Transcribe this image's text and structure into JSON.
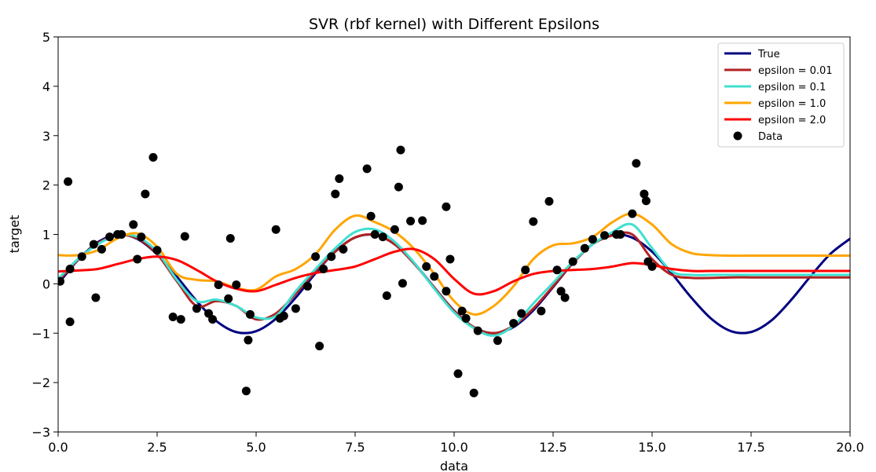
{
  "chart_data": {
    "type": "line",
    "title": "SVR (rbf kernel) with Different Epsilons",
    "xlabel": "data",
    "ylabel": "target",
    "xlim": [
      0,
      20
    ],
    "ylim": [
      -3,
      5
    ],
    "xticks": [
      0.0,
      2.5,
      5.0,
      7.5,
      10.0,
      12.5,
      15.0,
      17.5,
      20.0
    ],
    "xtick_labels": [
      "0.0",
      "2.5",
      "5.0",
      "7.5",
      "10.0",
      "12.5",
      "15.0",
      "17.5",
      "20.0"
    ],
    "yticks": [
      -3,
      -2,
      -1,
      0,
      1,
      2,
      3,
      4,
      5
    ],
    "ytick_labels": [
      "−3",
      "−2",
      "−1",
      "0",
      "1",
      "2",
      "3",
      "4",
      "5"
    ],
    "grid": false,
    "legend_position": "top-right",
    "legend": [
      "True",
      "epsilon = 0.01",
      "epsilon = 0.1",
      "epsilon = 1.0",
      "epsilon = 2.0",
      "Data"
    ],
    "series": [
      {
        "name": "True",
        "color": "#000080",
        "x": [
          0,
          0.5,
          1,
          1.5,
          2,
          2.5,
          3,
          3.5,
          4,
          4.5,
          5,
          5.5,
          6,
          6.5,
          7,
          7.5,
          8,
          8.5,
          9,
          9.5,
          10,
          10.5,
          11,
          11.5,
          12,
          12.5,
          13,
          13.5,
          14,
          14.5,
          15,
          15.5,
          16,
          16.5,
          17,
          17.5,
          18,
          18.5,
          19,
          19.5,
          20
        ],
        "y": [
          0.0,
          0.479,
          0.841,
          0.997,
          0.909,
          0.598,
          0.141,
          -0.351,
          -0.757,
          -0.978,
          -0.959,
          -0.706,
          -0.279,
          0.215,
          0.657,
          0.938,
          0.989,
          0.798,
          0.412,
          -0.075,
          -0.544,
          -0.88,
          -1.0,
          -0.875,
          -0.537,
          -0.066,
          0.42,
          0.804,
          0.991,
          0.935,
          0.65,
          0.206,
          -0.288,
          -0.712,
          -0.961,
          -0.976,
          -0.751,
          -0.338,
          0.15,
          0.604,
          0.913
        ]
      },
      {
        "name": "epsilon = 0.01",
        "color": "#b22222",
        "x": [
          0,
          0.5,
          1,
          1.5,
          2,
          2.5,
          3,
          3.5,
          4,
          4.5,
          5,
          5.5,
          6,
          6.5,
          7,
          7.5,
          8,
          8.5,
          9,
          9.5,
          10,
          10.5,
          11,
          11.5,
          12,
          12.5,
          13,
          13.5,
          14,
          14.5,
          15,
          15.5,
          16,
          16.5,
          17,
          17.5,
          18,
          18.5,
          19,
          19.5,
          20
        ],
        "y": [
          0.05,
          0.48,
          0.82,
          0.98,
          0.92,
          0.6,
          0.05,
          -0.45,
          -0.35,
          -0.45,
          -0.72,
          -0.6,
          -0.2,
          0.25,
          0.65,
          0.94,
          0.99,
          0.8,
          0.4,
          -0.08,
          -0.55,
          -0.88,
          -1.0,
          -0.85,
          -0.5,
          -0.05,
          0.42,
          0.8,
          0.98,
          1.0,
          0.5,
          0.18,
          0.12,
          0.12,
          0.13,
          0.13,
          0.13,
          0.13,
          0.13,
          0.13,
          0.13
        ]
      },
      {
        "name": "epsilon = 0.1",
        "color": "#40e0d0",
        "x": [
          0,
          0.5,
          1,
          1.5,
          2,
          2.5,
          3,
          3.5,
          4,
          4.5,
          5,
          5.5,
          6,
          6.5,
          7,
          7.5,
          8,
          8.5,
          9,
          9.5,
          10,
          10.5,
          11,
          11.5,
          12,
          12.5,
          13,
          13.5,
          14,
          14.5,
          15,
          15.5,
          16,
          16.5,
          17,
          17.5,
          18,
          18.5,
          19,
          19.5,
          20
        ],
        "y": [
          0.1,
          0.5,
          0.8,
          0.98,
          0.95,
          0.65,
          0.08,
          -0.35,
          -0.32,
          -0.45,
          -0.68,
          -0.65,
          -0.15,
          0.3,
          0.72,
          1.05,
          1.1,
          0.85,
          0.42,
          -0.1,
          -0.58,
          -0.9,
          -1.05,
          -0.85,
          -0.4,
          0.02,
          0.45,
          0.8,
          1.05,
          1.2,
          0.72,
          0.25,
          0.18,
          0.18,
          0.18,
          0.18,
          0.18,
          0.18,
          0.18,
          0.18,
          0.18
        ]
      },
      {
        "name": "epsilon = 1.0",
        "color": "#ffa500",
        "x": [
          0,
          0.5,
          1,
          1.5,
          2,
          2.5,
          3,
          3.5,
          4,
          4.5,
          5,
          5.5,
          6,
          6.5,
          7,
          7.5,
          8,
          8.5,
          9,
          9.5,
          10,
          10.5,
          11,
          11.5,
          12,
          12.5,
          13,
          13.5,
          14,
          14.5,
          15,
          15.5,
          16,
          16.5,
          17,
          17.5,
          18,
          18.5,
          19,
          19.5,
          20
        ],
        "y": [
          0.58,
          0.58,
          0.68,
          0.92,
          1.02,
          0.75,
          0.2,
          0.08,
          0.05,
          -0.08,
          -0.12,
          0.15,
          0.3,
          0.6,
          1.1,
          1.38,
          1.25,
          1.05,
          0.7,
          0.2,
          -0.35,
          -0.62,
          -0.45,
          -0.05,
          0.5,
          0.78,
          0.82,
          0.95,
          1.25,
          1.42,
          1.2,
          0.8,
          0.62,
          0.58,
          0.57,
          0.57,
          0.57,
          0.57,
          0.57,
          0.57,
          0.57
        ]
      },
      {
        "name": "epsilon = 2.0",
        "color": "#ff0000",
        "x": [
          0,
          0.5,
          1,
          1.5,
          2,
          2.5,
          3,
          3.5,
          4,
          4.5,
          5,
          5.5,
          6,
          6.5,
          7,
          7.5,
          8,
          8.5,
          9,
          9.5,
          10,
          10.5,
          11,
          11.5,
          12,
          12.5,
          13,
          13.5,
          14,
          14.5,
          15,
          15.5,
          16,
          16.5,
          17,
          17.5,
          18,
          18.5,
          19,
          19.5,
          20
        ],
        "y": [
          0.25,
          0.27,
          0.3,
          0.4,
          0.5,
          0.55,
          0.48,
          0.28,
          0.05,
          -0.1,
          -0.15,
          -0.02,
          0.12,
          0.22,
          0.28,
          0.35,
          0.5,
          0.65,
          0.7,
          0.5,
          0.1,
          -0.2,
          -0.15,
          0.05,
          0.2,
          0.26,
          0.28,
          0.3,
          0.35,
          0.42,
          0.38,
          0.3,
          0.26,
          0.26,
          0.26,
          0.26,
          0.26,
          0.26,
          0.26,
          0.26,
          0.26
        ]
      }
    ],
    "scatter": {
      "name": "Data",
      "color": "#000000",
      "points": [
        [
          0.05,
          0.05
        ],
        [
          0.3,
          0.3
        ],
        [
          0.25,
          2.07
        ],
        [
          0.3,
          -0.77
        ],
        [
          0.6,
          0.55
        ],
        [
          0.9,
          0.8
        ],
        [
          0.95,
          -0.28
        ],
        [
          1.1,
          0.7
        ],
        [
          1.3,
          0.95
        ],
        [
          1.5,
          1.0
        ],
        [
          1.6,
          1.0
        ],
        [
          1.9,
          1.2
        ],
        [
          2.0,
          0.5
        ],
        [
          2.1,
          0.95
        ],
        [
          2.2,
          1.82
        ],
        [
          2.4,
          2.56
        ],
        [
          2.5,
          0.68
        ],
        [
          2.9,
          -0.67
        ],
        [
          3.1,
          -0.72
        ],
        [
          3.2,
          0.96
        ],
        [
          3.5,
          -0.5
        ],
        [
          3.8,
          -0.6
        ],
        [
          3.9,
          -0.72
        ],
        [
          4.05,
          -0.02
        ],
        [
          4.3,
          -0.3
        ],
        [
          4.35,
          0.92
        ],
        [
          4.5,
          -0.02
        ],
        [
          4.75,
          -2.17
        ],
        [
          4.8,
          -1.14
        ],
        [
          4.85,
          -0.62
        ],
        [
          5.5,
          1.1
        ],
        [
          5.6,
          -0.7
        ],
        [
          5.7,
          -0.65
        ],
        [
          6.0,
          -0.5
        ],
        [
          6.3,
          -0.05
        ],
        [
          6.5,
          0.55
        ],
        [
          6.6,
          -1.26
        ],
        [
          6.7,
          0.3
        ],
        [
          6.9,
          0.55
        ],
        [
          7.0,
          1.82
        ],
        [
          7.1,
          2.13
        ],
        [
          7.2,
          0.7
        ],
        [
          7.8,
          2.33
        ],
        [
          7.9,
          1.37
        ],
        [
          8.0,
          1.0
        ],
        [
          8.2,
          0.95
        ],
        [
          8.3,
          -0.24
        ],
        [
          8.5,
          1.1
        ],
        [
          8.6,
          1.96
        ],
        [
          8.65,
          2.71
        ],
        [
          8.7,
          0.01
        ],
        [
          8.9,
          1.27
        ],
        [
          9.2,
          1.28
        ],
        [
          9.3,
          0.35
        ],
        [
          9.5,
          0.15
        ],
        [
          9.8,
          -0.15
        ],
        [
          9.8,
          1.56
        ],
        [
          9.9,
          0.5
        ],
        [
          10.1,
          -1.82
        ],
        [
          10.2,
          -0.55
        ],
        [
          10.3,
          -0.7
        ],
        [
          10.5,
          -2.21
        ],
        [
          10.6,
          -0.95
        ],
        [
          11.1,
          -1.15
        ],
        [
          11.5,
          -0.8
        ],
        [
          11.7,
          -0.6
        ],
        [
          11.8,
          0.28
        ],
        [
          12.0,
          1.26
        ],
        [
          12.2,
          -0.55
        ],
        [
          12.4,
          1.67
        ],
        [
          12.6,
          0.28
        ],
        [
          12.7,
          -0.15
        ],
        [
          12.8,
          -0.28
        ],
        [
          13.0,
          0.45
        ],
        [
          13.3,
          0.72
        ],
        [
          13.5,
          0.9
        ],
        [
          13.8,
          0.98
        ],
        [
          14.1,
          1.0
        ],
        [
          14.2,
          1.0
        ],
        [
          14.5,
          1.42
        ],
        [
          14.6,
          2.44
        ],
        [
          14.8,
          1.82
        ],
        [
          14.85,
          1.68
        ],
        [
          14.9,
          0.45
        ],
        [
          15.0,
          0.35
        ]
      ]
    }
  }
}
